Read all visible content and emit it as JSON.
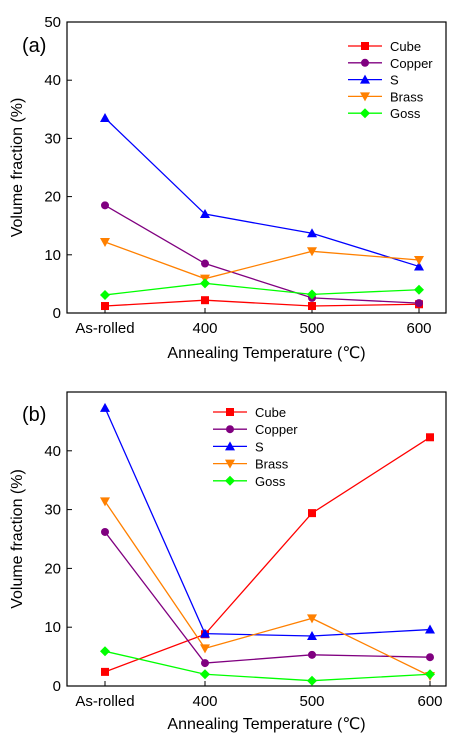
{
  "chart_data": [
    {
      "panel_label": "(a)",
      "type": "line",
      "categories": [
        "As-rolled",
        "400",
        "500",
        "600"
      ],
      "xlabel": "Annealing Temperature (℃)",
      "ylabel": "Volume fraction (%)",
      "ylim": [
        0,
        50
      ],
      "yticks": [
        0,
        10,
        20,
        30,
        40,
        50
      ],
      "grid": false,
      "legend_position": "top-right",
      "series": [
        {
          "name": "Cube",
          "color": "#ff0000",
          "marker": "square",
          "values": [
            1.2,
            2.2,
            1.2,
            1.5
          ]
        },
        {
          "name": "Copper",
          "color": "#800080",
          "marker": "circle",
          "values": [
            18.5,
            8.5,
            2.6,
            1.7
          ]
        },
        {
          "name": "S",
          "color": "#0000ff",
          "marker": "triangle-up",
          "values": [
            33.5,
            17.0,
            13.7,
            8.0
          ]
        },
        {
          "name": "Brass",
          "color": "#ff8000",
          "marker": "triangle-down",
          "values": [
            12.2,
            5.9,
            10.6,
            9.1
          ]
        },
        {
          "name": "Goss",
          "color": "#00ff00",
          "marker": "diamond",
          "values": [
            3.1,
            5.1,
            3.2,
            4.0
          ]
        }
      ]
    },
    {
      "panel_label": "(b)",
      "type": "line",
      "categories": [
        "As-rolled",
        "400",
        "500",
        "600"
      ],
      "xlabel": "Annealing Temperature (℃)",
      "ylabel": "Volume fraction (%)",
      "ylim": [
        0,
        50
      ],
      "yticks": [
        0,
        10,
        20,
        30,
        40
      ],
      "grid": false,
      "legend_position": "top-center",
      "series": [
        {
          "name": "Cube",
          "color": "#ff0000",
          "marker": "square",
          "values": [
            2.4,
            8.8,
            29.4,
            42.3
          ]
        },
        {
          "name": "Copper",
          "color": "#800080",
          "marker": "circle",
          "values": [
            26.2,
            3.9,
            5.3,
            4.9
          ]
        },
        {
          "name": "S",
          "color": "#0000ff",
          "marker": "triangle-up",
          "values": [
            47.3,
            8.9,
            8.5,
            9.6
          ]
        },
        {
          "name": "Brass",
          "color": "#ff8000",
          "marker": "triangle-down",
          "values": [
            31.4,
            6.4,
            11.5,
            1.7
          ]
        },
        {
          "name": "Goss",
          "color": "#00ff00",
          "marker": "diamond",
          "values": [
            5.9,
            2.0,
            0.9,
            2.0
          ]
        }
      ]
    }
  ]
}
